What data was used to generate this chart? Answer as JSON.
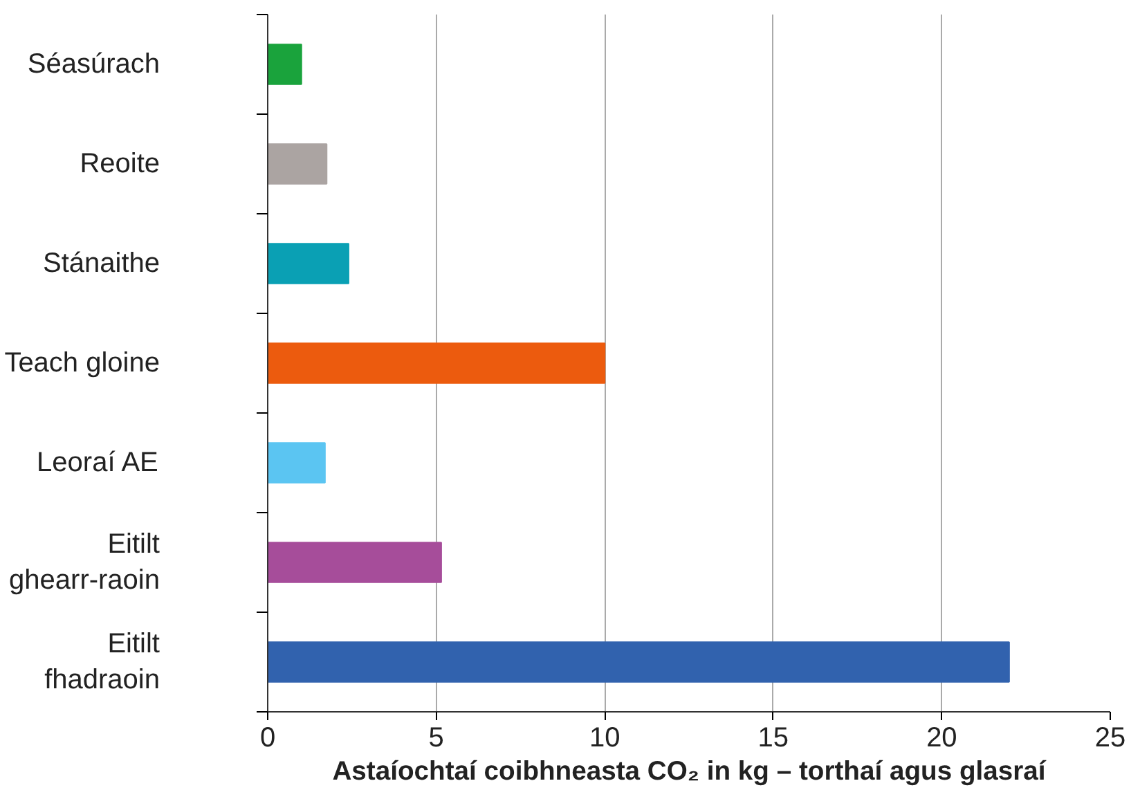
{
  "chart_data": {
    "type": "bar",
    "orientation": "horizontal",
    "xlabel": "Astaíochtaí coibhneasta CO₂ in kg – torthaí agus glasraí",
    "categories": [
      "Séasúrach",
      "Reoite",
      "Stánaithe",
      "Teach gloine",
      "Leoraí AE",
      "Eitilt\nghearr-raoin",
      "Eitilt\nfhadraoin"
    ],
    "values": [
      1.0,
      1.75,
      2.4,
      10,
      1.7,
      5.15,
      22.0
    ],
    "colors": [
      "#1aa33c",
      "#aba4a2",
      "#0aa0b4",
      "#ec5b0e",
      "#5bc5f2",
      "#a64d9a",
      "#3162ae"
    ],
    "xlim": [
      0,
      25
    ],
    "xticks": [
      0,
      5,
      10,
      15,
      20,
      25
    ],
    "grid": "x"
  }
}
